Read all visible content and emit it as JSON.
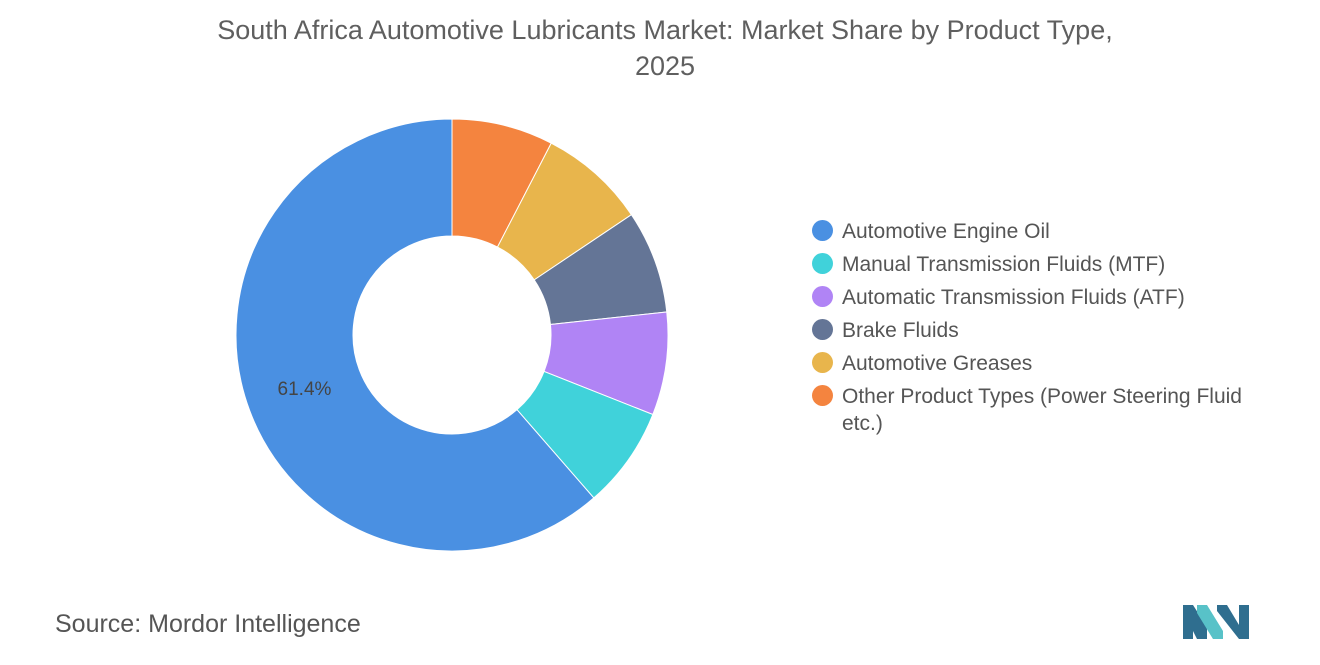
{
  "title_line1": "South Africa Automotive Lubricants Market: Market Share by Product Type,",
  "title_line2": "2025",
  "source_label": "Source:",
  "source_name": "Mordor Intelligence",
  "colors": {
    "blue": "#4a90e2",
    "teal": "#40d2da",
    "purple": "#b084f5",
    "slate": "#647596",
    "gold": "#e8b54c",
    "orange": "#f4843f",
    "logo_dark": "#2f6e8f",
    "logo_light": "#58c2c8"
  },
  "chart_data": {
    "type": "pie",
    "style": "donut",
    "title": "South Africa Automotive Lubricants Market: Market Share by Product Type, 2025",
    "legend_position": "right",
    "series": [
      {
        "name": "Automotive Engine Oil",
        "value": 61.4,
        "color": "#4a90e2",
        "label": "61.4%"
      },
      {
        "name": "Manual Transmission Fluids (MTF)",
        "value": 7.6,
        "color": "#40d2da",
        "label": ""
      },
      {
        "name": "Automatic Transmission Fluids (ATF)",
        "value": 7.7,
        "color": "#b084f5",
        "label": ""
      },
      {
        "name": "Brake Fluids",
        "value": 7.7,
        "color": "#647596",
        "label": ""
      },
      {
        "name": "Automotive Greases",
        "value": 8.0,
        "color": "#e8b54c",
        "label": ""
      },
      {
        "name": "Other Product Types (Power Steering Fluid etc.)",
        "value": 7.6,
        "color": "#f4843f",
        "label": ""
      }
    ]
  }
}
